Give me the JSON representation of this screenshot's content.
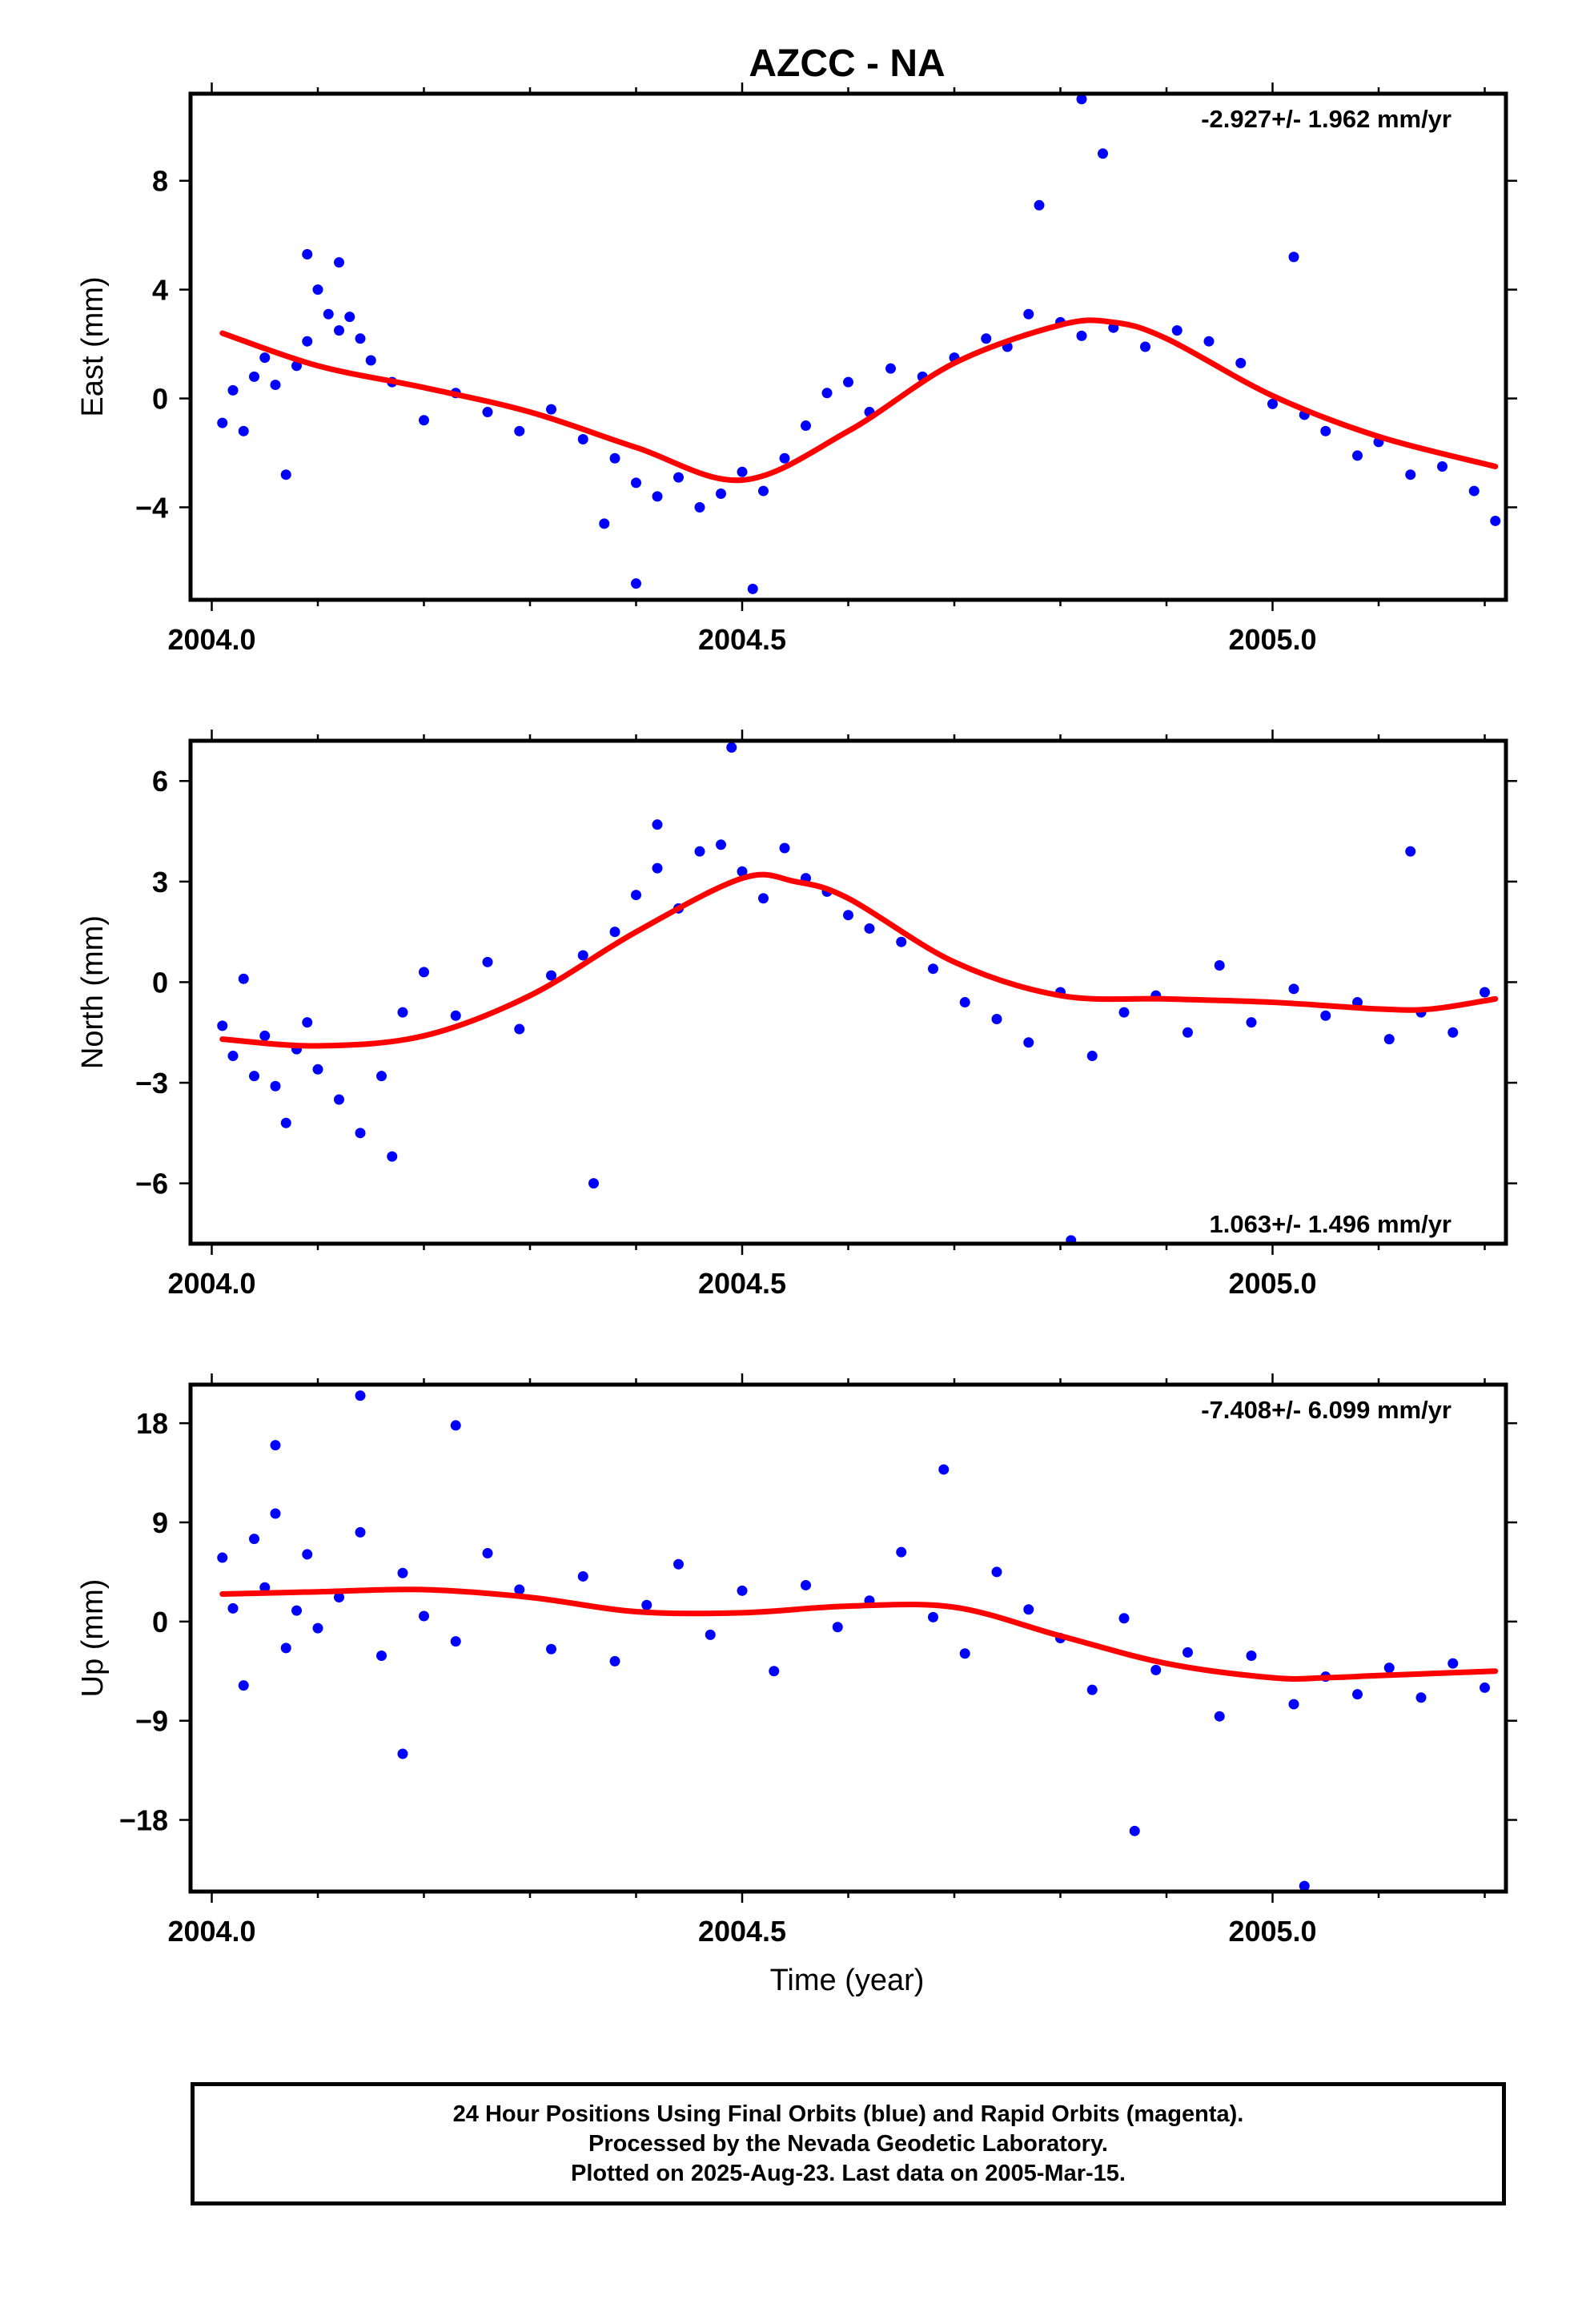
{
  "figure": {
    "title": "AZCC - NA",
    "xlabel": "Time (year)"
  },
  "caption": {
    "line1": "24 Hour Positions Using Final Orbits (blue) and Rapid Orbits (magenta).",
    "line2": "Processed by the Nevada Geodetic Laboratory.",
    "line3": "Plotted on 2025-Aug-23. Last data on 2005-Mar-15."
  },
  "colors": {
    "points": "#0000ff",
    "fit": "#ff0000",
    "frame": "#000000"
  },
  "chart_data": [
    {
      "type": "scatter",
      "ylabel": "East (mm)",
      "rate": "-2.927+/- 1.962 mm/yr",
      "rate_position": "top-right",
      "xlim": [
        2003.98,
        2005.22
      ],
      "ylim": [
        -7.4,
        11.2
      ],
      "x_ticks": [
        "2004.0",
        "2004.5",
        "2005.0"
      ],
      "y_ticks": [
        "8",
        "4",
        "0",
        "−4"
      ],
      "y_tick_values": [
        8,
        4,
        0,
        -4
      ],
      "grid": false,
      "series": [
        {
          "kind": "points",
          "x": [
            2004.01,
            2004.02,
            2004.03,
            2004.04,
            2004.05,
            2004.06,
            2004.07,
            2004.08,
            2004.09,
            2004.1,
            2004.11,
            2004.12,
            2004.13,
            2004.14,
            2004.15,
            2004.17,
            2004.2,
            2004.23,
            2004.26,
            2004.29,
            2004.32,
            2004.35,
            2004.38,
            2004.4,
            2004.42,
            2004.44,
            2004.46,
            2004.48,
            2004.5,
            2004.52,
            2004.54,
            2004.56,
            2004.58,
            2004.6,
            2004.62,
            2004.64,
            2004.67,
            2004.7,
            2004.73,
            2004.75,
            2004.77,
            2004.8,
            2004.82,
            2004.85,
            2004.88,
            2004.91,
            2004.94,
            2004.97,
            2005.0,
            2005.03,
            2005.05,
            2005.08,
            2005.1,
            2005.13,
            2005.16,
            2005.19,
            2005.21,
            2004.09,
            2004.12,
            2004.78,
            2004.82,
            2004.84,
            2004.37,
            2004.4,
            2004.51,
            2005.02
          ],
          "y": [
            -0.9,
            0.3,
            -1.2,
            0.8,
            1.5,
            0.5,
            -2.8,
            1.2,
            2.1,
            4.0,
            3.1,
            2.5,
            3.0,
            2.2,
            1.4,
            0.6,
            -0.8,
            0.2,
            -0.5,
            -1.2,
            -0.4,
            -1.5,
            -2.2,
            -3.1,
            -3.6,
            -2.9,
            -4.0,
            -3.5,
            -2.7,
            -3.4,
            -2.2,
            -1.0,
            0.2,
            0.6,
            -0.5,
            1.1,
            0.8,
            1.5,
            2.2,
            1.9,
            3.1,
            2.8,
            2.3,
            2.6,
            1.9,
            2.5,
            2.1,
            1.3,
            -0.2,
            -0.6,
            -1.2,
            -2.1,
            -1.6,
            -2.8,
            -2.5,
            -3.4,
            -4.5,
            5.3,
            5.0,
            7.1,
            11.0,
            9.0,
            -4.6,
            -6.8,
            -7.0,
            5.2
          ]
        },
        {
          "kind": "fit",
          "x": [
            2004.01,
            2004.1,
            2004.2,
            2004.3,
            2004.4,
            2004.5,
            2004.6,
            2004.7,
            2004.8,
            2004.85,
            2004.9,
            2005.0,
            2005.1,
            2005.21
          ],
          "y": [
            2.4,
            1.2,
            0.4,
            -0.5,
            -1.8,
            -3.0,
            -1.2,
            1.3,
            2.7,
            2.8,
            2.2,
            0.1,
            -1.4,
            -2.5
          ]
        }
      ]
    },
    {
      "type": "scatter",
      "ylabel": "North (mm)",
      "rate": "1.063+/- 1.496 mm/yr",
      "rate_position": "bottom-right",
      "xlim": [
        2003.98,
        2005.22
      ],
      "ylim": [
        -7.8,
        7.2
      ],
      "x_ticks": [
        "2004.0",
        "2004.5",
        "2005.0"
      ],
      "y_ticks": [
        "6",
        "3",
        "0",
        "−3",
        "−6"
      ],
      "y_tick_values": [
        6,
        3,
        0,
        -3,
        -6
      ],
      "grid": false,
      "series": [
        {
          "kind": "points",
          "x": [
            2004.01,
            2004.02,
            2004.03,
            2004.04,
            2004.05,
            2004.06,
            2004.07,
            2004.08,
            2004.09,
            2004.1,
            2004.12,
            2004.14,
            2004.16,
            2004.18,
            2004.2,
            2004.23,
            2004.26,
            2004.29,
            2004.32,
            2004.35,
            2004.38,
            2004.4,
            2004.42,
            2004.44,
            2004.46,
            2004.48,
            2004.5,
            2004.52,
            2004.54,
            2004.56,
            2004.58,
            2004.6,
            2004.62,
            2004.65,
            2004.68,
            2004.71,
            2004.74,
            2004.77,
            2004.8,
            2004.83,
            2004.86,
            2004.89,
            2004.92,
            2004.95,
            2004.98,
            2005.02,
            2005.05,
            2005.08,
            2005.11,
            2005.14,
            2005.17,
            2005.2,
            2004.49,
            2004.36,
            2004.81,
            2004.17,
            2005.13,
            2004.42
          ],
          "y": [
            -1.3,
            -2.2,
            0.1,
            -2.8,
            -1.6,
            -3.1,
            -4.2,
            -2.0,
            -1.2,
            -2.6,
            -3.5,
            -4.5,
            -2.8,
            -0.9,
            0.3,
            -1.0,
            0.6,
            -1.4,
            0.2,
            0.8,
            1.5,
            2.6,
            3.4,
            2.2,
            3.9,
            4.1,
            3.3,
            2.5,
            4.0,
            3.1,
            2.7,
            2.0,
            1.6,
            1.2,
            0.4,
            -0.6,
            -1.1,
            -1.8,
            -0.3,
            -2.2,
            -0.9,
            -0.4,
            -1.5,
            0.5,
            -1.2,
            -0.2,
            -1.0,
            -0.6,
            -1.7,
            -0.9,
            -1.5,
            -0.3,
            7.0,
            -6.0,
            -7.7,
            -5.2,
            3.9,
            4.7
          ]
        },
        {
          "kind": "fit",
          "x": [
            2004.01,
            2004.1,
            2004.2,
            2004.3,
            2004.4,
            2004.5,
            2004.55,
            2004.6,
            2004.7,
            2004.8,
            2004.9,
            2005.0,
            2005.1,
            2005.15,
            2005.21
          ],
          "y": [
            -1.7,
            -1.9,
            -1.6,
            -0.4,
            1.5,
            3.1,
            3.0,
            2.5,
            0.6,
            -0.4,
            -0.5,
            -0.6,
            -0.8,
            -0.8,
            -0.5
          ]
        }
      ]
    },
    {
      "type": "scatter",
      "ylabel": "Up (mm)",
      "rate": "-7.408+/- 6.099 mm/yr",
      "rate_position": "top-right",
      "xlim": [
        2003.98,
        2005.22
      ],
      "ylim": [
        -24.5,
        21.5
      ],
      "x_ticks": [
        "2004.0",
        "2004.5",
        "2005.0"
      ],
      "y_ticks": [
        "18",
        "9",
        "0",
        "−9",
        "−18"
      ],
      "y_tick_values": [
        18,
        9,
        0,
        -9,
        -18
      ],
      "grid": false,
      "series": [
        {
          "kind": "points",
          "x": [
            2004.01,
            2004.02,
            2004.03,
            2004.04,
            2004.05,
            2004.06,
            2004.07,
            2004.08,
            2004.09,
            2004.1,
            2004.12,
            2004.14,
            2004.16,
            2004.18,
            2004.2,
            2004.23,
            2004.26,
            2004.29,
            2004.32,
            2004.35,
            2004.38,
            2004.41,
            2004.44,
            2004.47,
            2004.5,
            2004.53,
            2004.56,
            2004.59,
            2004.62,
            2004.65,
            2004.68,
            2004.71,
            2004.74,
            2004.77,
            2004.8,
            2004.83,
            2004.86,
            2004.89,
            2004.92,
            2004.95,
            2004.98,
            2005.02,
            2005.05,
            2005.08,
            2005.11,
            2005.14,
            2005.17,
            2005.2,
            2004.14,
            2004.23,
            2004.06,
            2005.03,
            2004.87,
            2004.18,
            2004.69
          ],
          "y": [
            5.8,
            1.2,
            -5.8,
            7.5,
            3.1,
            9.8,
            -2.4,
            1.0,
            6.1,
            -0.6,
            2.2,
            8.1,
            -3.1,
            4.4,
            0.5,
            -1.8,
            6.2,
            2.9,
            -2.5,
            4.1,
            -3.6,
            1.5,
            5.2,
            -1.2,
            2.8,
            -4.5,
            3.3,
            -0.5,
            1.9,
            6.3,
            0.4,
            -2.9,
            4.5,
            1.1,
            -1.5,
            -6.2,
            0.3,
            -4.4,
            -2.8,
            -8.6,
            -3.1,
            -7.5,
            -5.0,
            -6.6,
            -4.2,
            -6.9,
            -3.8,
            -6.0,
            20.5,
            17.8,
            16.0,
            -24.0,
            -19.0,
            -12.0,
            13.8
          ]
        },
        {
          "kind": "fit",
          "x": [
            2004.01,
            2004.1,
            2004.2,
            2004.3,
            2004.4,
            2004.5,
            2004.6,
            2004.7,
            2004.8,
            2004.9,
            2005.0,
            2005.05,
            2005.1,
            2005.21
          ],
          "y": [
            2.5,
            2.7,
            2.9,
            2.2,
            0.9,
            0.8,
            1.4,
            1.3,
            -1.3,
            -3.8,
            -5.1,
            -5.1,
            -4.9,
            -4.5
          ]
        }
      ]
    }
  ]
}
